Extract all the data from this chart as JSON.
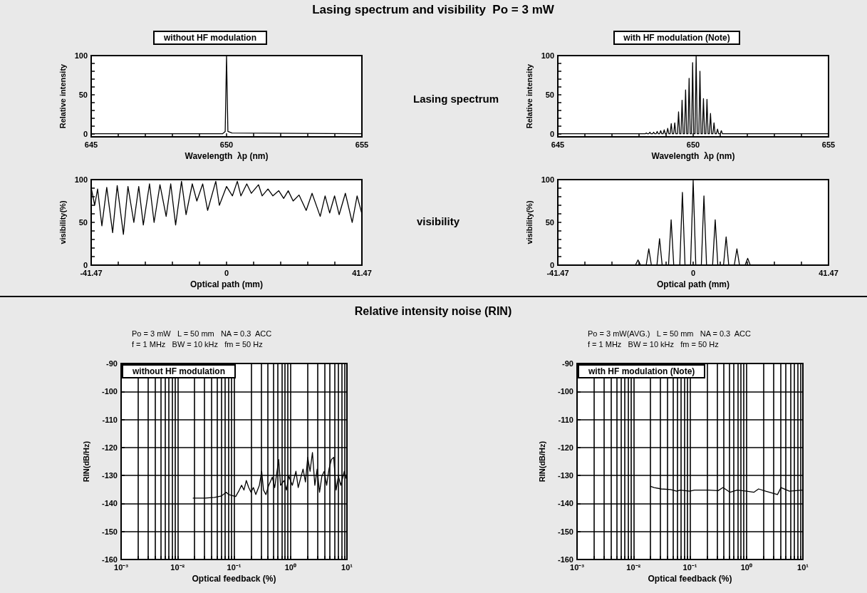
{
  "chart_data": [
    {
      "type": "line",
      "title": "without HF modulation",
      "xlabel": "Wavelength  λp (nm)",
      "ylabel": "Relative intensity",
      "annotations": [
        "Lasing spectrum and visibility  Po = 3 mW",
        "Lasing spectrum"
      ],
      "marker": "none",
      "color": "#000000",
      "x": [
        645,
        649.85,
        649.95,
        650,
        650.05,
        650.2,
        655
      ],
      "values": [
        0,
        0,
        3,
        100,
        3,
        1,
        0
      ],
      "xlim": [
        645,
        655
      ],
      "ylim": [
        -4,
        100
      ],
      "xticks": [
        645,
        {
          "value": 646,
          "label": null
        },
        {
          "value": 647,
          "label": null
        },
        {
          "value": 648,
          "label": null
        },
        {
          "value": 649,
          "label": null
        },
        650,
        {
          "value": 651,
          "label": null
        },
        {
          "value": 652,
          "label": null
        },
        {
          "value": 653,
          "label": null
        },
        {
          "value": 654,
          "label": null
        },
        655
      ],
      "yticks": [
        0,
        {
          "value": 10,
          "label": null
        },
        {
          "value": 20,
          "label": null
        },
        {
          "value": 30,
          "label": null
        },
        {
          "value": 40,
          "label": null
        },
        50,
        {
          "value": 60,
          "label": null
        },
        {
          "value": 70,
          "label": null
        },
        {
          "value": 80,
          "label": null
        },
        {
          "value": 90,
          "label": null
        },
        100
      ]
    },
    {
      "type": "line",
      "title": "with HF modulation (Note)",
      "xlabel": "Wavelength  λp (nm)",
      "ylabel": "Relative intensity",
      "marker": "none",
      "color": "#000000",
      "x": [
        645,
        648.23,
        648.27,
        648.31,
        648.36,
        648.4,
        648.44,
        648.5,
        648.54,
        648.58,
        648.63,
        648.67,
        648.71,
        648.76,
        648.8,
        648.84,
        648.89,
        648.93,
        648.97,
        649.02,
        649.06,
        649.1,
        649.15,
        649.19,
        649.23,
        649.28,
        649.32,
        649.36,
        649.42,
        649.46,
        649.5,
        649.55,
        649.59,
        649.63,
        649.68,
        649.72,
        649.76,
        649.81,
        649.85,
        649.89,
        649.94,
        649.98,
        650.02,
        650.07,
        650.11,
        650.15,
        650.21,
        650.25,
        650.29,
        650.34,
        650.38,
        650.42,
        650.47,
        650.51,
        650.55,
        650.6,
        650.64,
        650.68,
        650.73,
        650.77,
        650.81,
        650.86,
        650.9,
        650.94,
        651.0,
        651.04,
        651.08,
        655
      ],
      "values": [
        0,
        0,
        1,
        0,
        0,
        2,
        0,
        0,
        2,
        0,
        0,
        3,
        0,
        0,
        4,
        0,
        0,
        5,
        0,
        0,
        7,
        0,
        0,
        13,
        0,
        0,
        14,
        0,
        0,
        28,
        0,
        0,
        43,
        0,
        0,
        56,
        0,
        0,
        71,
        0,
        0,
        91,
        0,
        0,
        100,
        0,
        0,
        80,
        0,
        0,
        45,
        0,
        0,
        44,
        0,
        0,
        26,
        0,
        0,
        14,
        0,
        0,
        6,
        0,
        0,
        4,
        0,
        0
      ],
      "xlim": [
        645,
        655
      ],
      "ylim": [
        -4,
        100
      ],
      "xticks": [
        645,
        {
          "value": 646,
          "label": null
        },
        {
          "value": 647,
          "label": null
        },
        {
          "value": 648,
          "label": null
        },
        {
          "value": 649,
          "label": null
        },
        650,
        {
          "value": 651,
          "label": null
        },
        {
          "value": 652,
          "label": null
        },
        {
          "value": 653,
          "label": null
        },
        {
          "value": 654,
          "label": null
        },
        655
      ],
      "yticks": [
        0,
        {
          "value": 10,
          "label": null
        },
        {
          "value": 20,
          "label": null
        },
        {
          "value": 30,
          "label": null
        },
        {
          "value": 40,
          "label": null
        },
        50,
        {
          "value": 60,
          "label": null
        },
        {
          "value": 70,
          "label": null
        },
        {
          "value": 80,
          "label": null
        },
        {
          "value": 90,
          "label": null
        },
        100
      ]
    },
    {
      "type": "line",
      "xlabel": "Optical path (mm)",
      "ylabel": "visibility(%)",
      "annotations": [
        "visibility"
      ],
      "marker": "none",
      "color": "#000000",
      "x": [
        -41.4,
        -40.4,
        -39.5,
        -38.2,
        -36.7,
        -34.9,
        -33.5,
        -31.6,
        -30.2,
        -28.4,
        -26.9,
        -25.5,
        -23.6,
        -22.2,
        -20.4,
        -18.5,
        -17.1,
        -15.6,
        -13.8,
        -12.4,
        -10.5,
        -9.1,
        -7.3,
        -5.8,
        -3.3,
        -2.2,
        0,
        1.8,
        3.3,
        4.4,
        6.2,
        7.6,
        9.8,
        10.9,
        12.7,
        14.2,
        16,
        17.5,
        18.9,
        20.4,
        22.2,
        24.4,
        26.2,
        28.7,
        30.2,
        31.6,
        33.1,
        34.5,
        36.4,
        38.5,
        40,
        41.4
      ],
      "values": [
        89,
        70,
        89,
        46,
        91,
        38,
        93,
        36,
        92,
        50,
        92,
        47,
        95,
        50,
        94,
        57,
        95,
        47,
        98,
        59,
        95,
        75,
        95,
        64,
        98,
        70,
        92,
        81,
        98,
        81,
        95,
        84,
        94,
        81,
        89,
        81,
        87,
        78,
        87,
        75,
        82,
        64,
        84,
        57,
        81,
        61,
        81,
        59,
        84,
        50,
        81,
        61
      ],
      "xlim": [
        -41.47,
        41.47
      ],
      "ylim": [
        0,
        100
      ],
      "xticks": [
        -41.47,
        {
          "value": -33.176,
          "label": null
        },
        {
          "value": -24.882,
          "label": null
        },
        {
          "value": -16.588,
          "label": null
        },
        {
          "value": -8.294,
          "label": null
        },
        0,
        {
          "value": 8.294,
          "label": null
        },
        {
          "value": 16.588,
          "label": null
        },
        {
          "value": 24.882,
          "label": null
        },
        {
          "value": 33.176,
          "label": null
        },
        41.47
      ],
      "yticks": [
        0,
        {
          "value": 10,
          "label": null
        },
        {
          "value": 20,
          "label": null
        },
        {
          "value": 30,
          "label": null
        },
        {
          "value": 40,
          "label": null
        },
        50,
        {
          "value": 60,
          "label": null
        },
        {
          "value": 70,
          "label": null
        },
        {
          "value": 80,
          "label": null
        },
        {
          "value": 90,
          "label": null
        },
        100
      ]
    },
    {
      "type": "line",
      "xlabel": "Optical path (mm)",
      "ylabel": "visibility(%)",
      "marker": "none",
      "color": "#000000",
      "x": [
        -41.47,
        -17.7,
        -16.9,
        -16.1,
        -14.4,
        -13.6,
        -12.8,
        -11.1,
        -10.3,
        -9.5,
        -7.55,
        -6.75,
        -5.95,
        -4.1,
        -3.3,
        -2.5,
        -0.8,
        0,
        0.8,
        2.5,
        3.3,
        4.1,
        5.95,
        6.75,
        7.55,
        9.3,
        10.1,
        10.9,
        12.6,
        13.4,
        14.2,
        15.9,
        16.7,
        17.5,
        41.47
      ],
      "values": [
        0,
        0,
        6,
        0,
        0,
        19,
        0,
        0,
        31,
        0,
        0,
        53,
        0,
        0,
        85,
        0,
        0,
        99,
        0,
        0,
        81,
        0,
        0,
        53,
        0,
        0,
        33,
        0,
        0,
        19,
        0,
        0,
        8,
        0,
        0
      ],
      "xlim": [
        -41.47,
        41.47
      ],
      "ylim": [
        0,
        100
      ],
      "xticks": [
        -41.47,
        {
          "value": -33.176,
          "label": null
        },
        {
          "value": -24.882,
          "label": null
        },
        {
          "value": -16.588,
          "label": null
        },
        {
          "value": -8.294,
          "label": null
        },
        0,
        {
          "value": 8.294,
          "label": null
        },
        {
          "value": 16.588,
          "label": null
        },
        {
          "value": 24.882,
          "label": null
        },
        {
          "value": 33.176,
          "label": null
        },
        41.47
      ],
      "yticks": [
        0,
        {
          "value": 10,
          "label": null
        },
        {
          "value": 20,
          "label": null
        },
        {
          "value": 30,
          "label": null
        },
        {
          "value": 40,
          "label": null
        },
        50,
        {
          "value": 60,
          "label": null
        },
        {
          "value": 70,
          "label": null
        },
        {
          "value": 80,
          "label": null
        },
        {
          "value": 90,
          "label": null
        },
        100
      ]
    },
    {
      "type": "line",
      "title": "without HF modulation",
      "xlabel": "Optical feedback (%)",
      "ylabel": "RIN(dB/Hz)",
      "annotations": [
        "Relative intensity noise (RIN)",
        "Po = 3 mW   L = 50 mm   NA = 0.3  ACC",
        "f = 1 MHz   BW = 10 kHz   fm = 50 Hz"
      ],
      "marker": "none",
      "color": "#000000",
      "log": "x",
      "grid": true,
      "x": [
        0.0189,
        0.0305,
        0.045,
        0.06,
        0.0728,
        0.0802,
        0.107,
        0.124,
        0.136,
        0.15,
        0.165,
        0.182,
        0.2,
        0.22,
        0.243,
        0.281,
        0.309,
        0.333,
        0.367,
        0.412,
        0.476,
        0.525,
        0.578,
        0.618,
        0.667,
        0.771,
        0.849,
        0.935,
        1.08,
        1.25,
        1.37,
        1.51,
        1.67,
        1.84,
        2.02,
        2.22,
        2.45,
        2.7,
        2.97,
        3.27,
        3.6,
        3.96,
        4.37,
        4.81,
        5.3,
        5.83,
        6.43,
        7.06,
        7.78,
        8.99,
        9.7
      ],
      "values": [
        -138.1,
        -138.1,
        -137.8,
        -137.3,
        -136,
        -136.8,
        -137.5,
        -135.2,
        -133.5,
        -135.2,
        -131.8,
        -134.3,
        -136,
        -134.3,
        -136.8,
        -133.5,
        -128.5,
        -135.2,
        -136.8,
        -133.5,
        -130.6,
        -134.3,
        -128.5,
        -124.3,
        -133.5,
        -131.8,
        -135.2,
        -130.2,
        -133.5,
        -128.5,
        -134.3,
        -131,
        -127.7,
        -132.3,
        -123.5,
        -128.5,
        -121.8,
        -133.5,
        -127.7,
        -136,
        -130.2,
        -128.5,
        -133.5,
        -127.7,
        -124.3,
        -123.5,
        -135.2,
        -130.2,
        -133.5,
        -128.5,
        -131
      ],
      "xlim": [
        0.001,
        10
      ],
      "ylim": [
        -160,
        -90
      ],
      "xticks": [
        {
          "value": 0.001,
          "label": "10⁻³"
        },
        {
          "value": 0.002,
          "label": null
        },
        {
          "value": 0.003,
          "label": null
        },
        {
          "value": 0.004,
          "label": null
        },
        {
          "value": 0.005,
          "label": null
        },
        {
          "value": 0.006,
          "label": null
        },
        {
          "value": 0.007,
          "label": null
        },
        {
          "value": 0.008,
          "label": null
        },
        {
          "value": 0.009,
          "label": null
        },
        {
          "value": 0.01,
          "label": "10⁻²"
        },
        {
          "value": 0.02,
          "label": null
        },
        {
          "value": 0.03,
          "label": null
        },
        {
          "value": 0.04,
          "label": null
        },
        {
          "value": 0.05,
          "label": null
        },
        {
          "value": 0.06,
          "label": null
        },
        {
          "value": 0.07,
          "label": null
        },
        {
          "value": 0.08,
          "label": null
        },
        {
          "value": 0.09,
          "label": null
        },
        {
          "value": 0.1,
          "label": "10⁻¹"
        },
        {
          "value": 0.2,
          "label": null
        },
        {
          "value": 0.3,
          "label": null
        },
        {
          "value": 0.4,
          "label": null
        },
        {
          "value": 0.5,
          "label": null
        },
        {
          "value": 0.6,
          "label": null
        },
        {
          "value": 0.7,
          "label": null
        },
        {
          "value": 0.8,
          "label": null
        },
        {
          "value": 0.9,
          "label": null
        },
        {
          "value": 1,
          "label": "10⁰"
        },
        {
          "value": 2,
          "label": null
        },
        {
          "value": 3,
          "label": null
        },
        {
          "value": 4,
          "label": null
        },
        {
          "value": 5,
          "label": null
        },
        {
          "value": 6,
          "label": null
        },
        {
          "value": 7,
          "label": null
        },
        {
          "value": 8,
          "label": null
        },
        {
          "value": 9,
          "label": null
        },
        {
          "value": 10,
          "label": "10¹"
        }
      ],
      "yticks": [
        -160,
        -150,
        -140,
        -130,
        -120,
        -110,
        -100,
        -90
      ]
    },
    {
      "type": "line",
      "title": "with HF modulation (Note)",
      "xlabel": "Optical feedback (%)",
      "ylabel": "RIN(dB/Hz)",
      "annotations": [
        "Po = 3 mW(AVG.)   L = 50 mm   NA = 0.3  ACC",
        "f = 1 MHz   BW = 10 kHz   fm = 50 Hz"
      ],
      "marker": "none",
      "color": "#000000",
      "log": "x",
      "grid": true,
      "x": [
        0.0201,
        0.0232,
        0.031,
        0.0457,
        0.0582,
        0.0673,
        0.099,
        0.12,
        0.215,
        0.316,
        0.384,
        0.513,
        0.686,
        1.01,
        1.35,
        1.64,
        2.19,
        3.55,
        4.1,
        5.77,
        9.81
      ],
      "values": [
        -133.9,
        -134.3,
        -134.8,
        -135,
        -135.6,
        -135.2,
        -135.6,
        -135.2,
        -135.2,
        -135.4,
        -134.3,
        -136,
        -135.2,
        -135.6,
        -136,
        -134.8,
        -135.6,
        -136.8,
        -134.3,
        -135.6,
        -135.2
      ],
      "xlim": [
        0.001,
        10
      ],
      "ylim": [
        -160,
        -90
      ],
      "xticks": [
        {
          "value": 0.001,
          "label": "10⁻³"
        },
        {
          "value": 0.002,
          "label": null
        },
        {
          "value": 0.003,
          "label": null
        },
        {
          "value": 0.004,
          "label": null
        },
        {
          "value": 0.005,
          "label": null
        },
        {
          "value": 0.006,
          "label": null
        },
        {
          "value": 0.007,
          "label": null
        },
        {
          "value": 0.008,
          "label": null
        },
        {
          "value": 0.009,
          "label": null
        },
        {
          "value": 0.01,
          "label": "10⁻²"
        },
        {
          "value": 0.02,
          "label": null
        },
        {
          "value": 0.03,
          "label": null
        },
        {
          "value": 0.04,
          "label": null
        },
        {
          "value": 0.05,
          "label": null
        },
        {
          "value": 0.06,
          "label": null
        },
        {
          "value": 0.07,
          "label": null
        },
        {
          "value": 0.08,
          "label": null
        },
        {
          "value": 0.09,
          "label": null
        },
        {
          "value": 0.1,
          "label": "10⁻¹"
        },
        {
          "value": 0.2,
          "label": null
        },
        {
          "value": 0.3,
          "label": null
        },
        {
          "value": 0.4,
          "label": null
        },
        {
          "value": 0.5,
          "label": null
        },
        {
          "value": 0.6,
          "label": null
        },
        {
          "value": 0.7,
          "label": null
        },
        {
          "value": 0.8,
          "label": null
        },
        {
          "value": 0.9,
          "label": null
        },
        {
          "value": 1,
          "label": "10⁰"
        },
        {
          "value": 2,
          "label": null
        },
        {
          "value": 3,
          "label": null
        },
        {
          "value": 4,
          "label": null
        },
        {
          "value": 5,
          "label": null
        },
        {
          "value": 6,
          "label": null
        },
        {
          "value": 7,
          "label": null
        },
        {
          "value": 8,
          "label": null
        },
        {
          "value": 9,
          "label": null
        },
        {
          "value": 10,
          "label": "10¹"
        }
      ],
      "yticks": [
        -160,
        -150,
        -140,
        -130,
        -120,
        -110,
        -100,
        -90
      ]
    }
  ]
}
